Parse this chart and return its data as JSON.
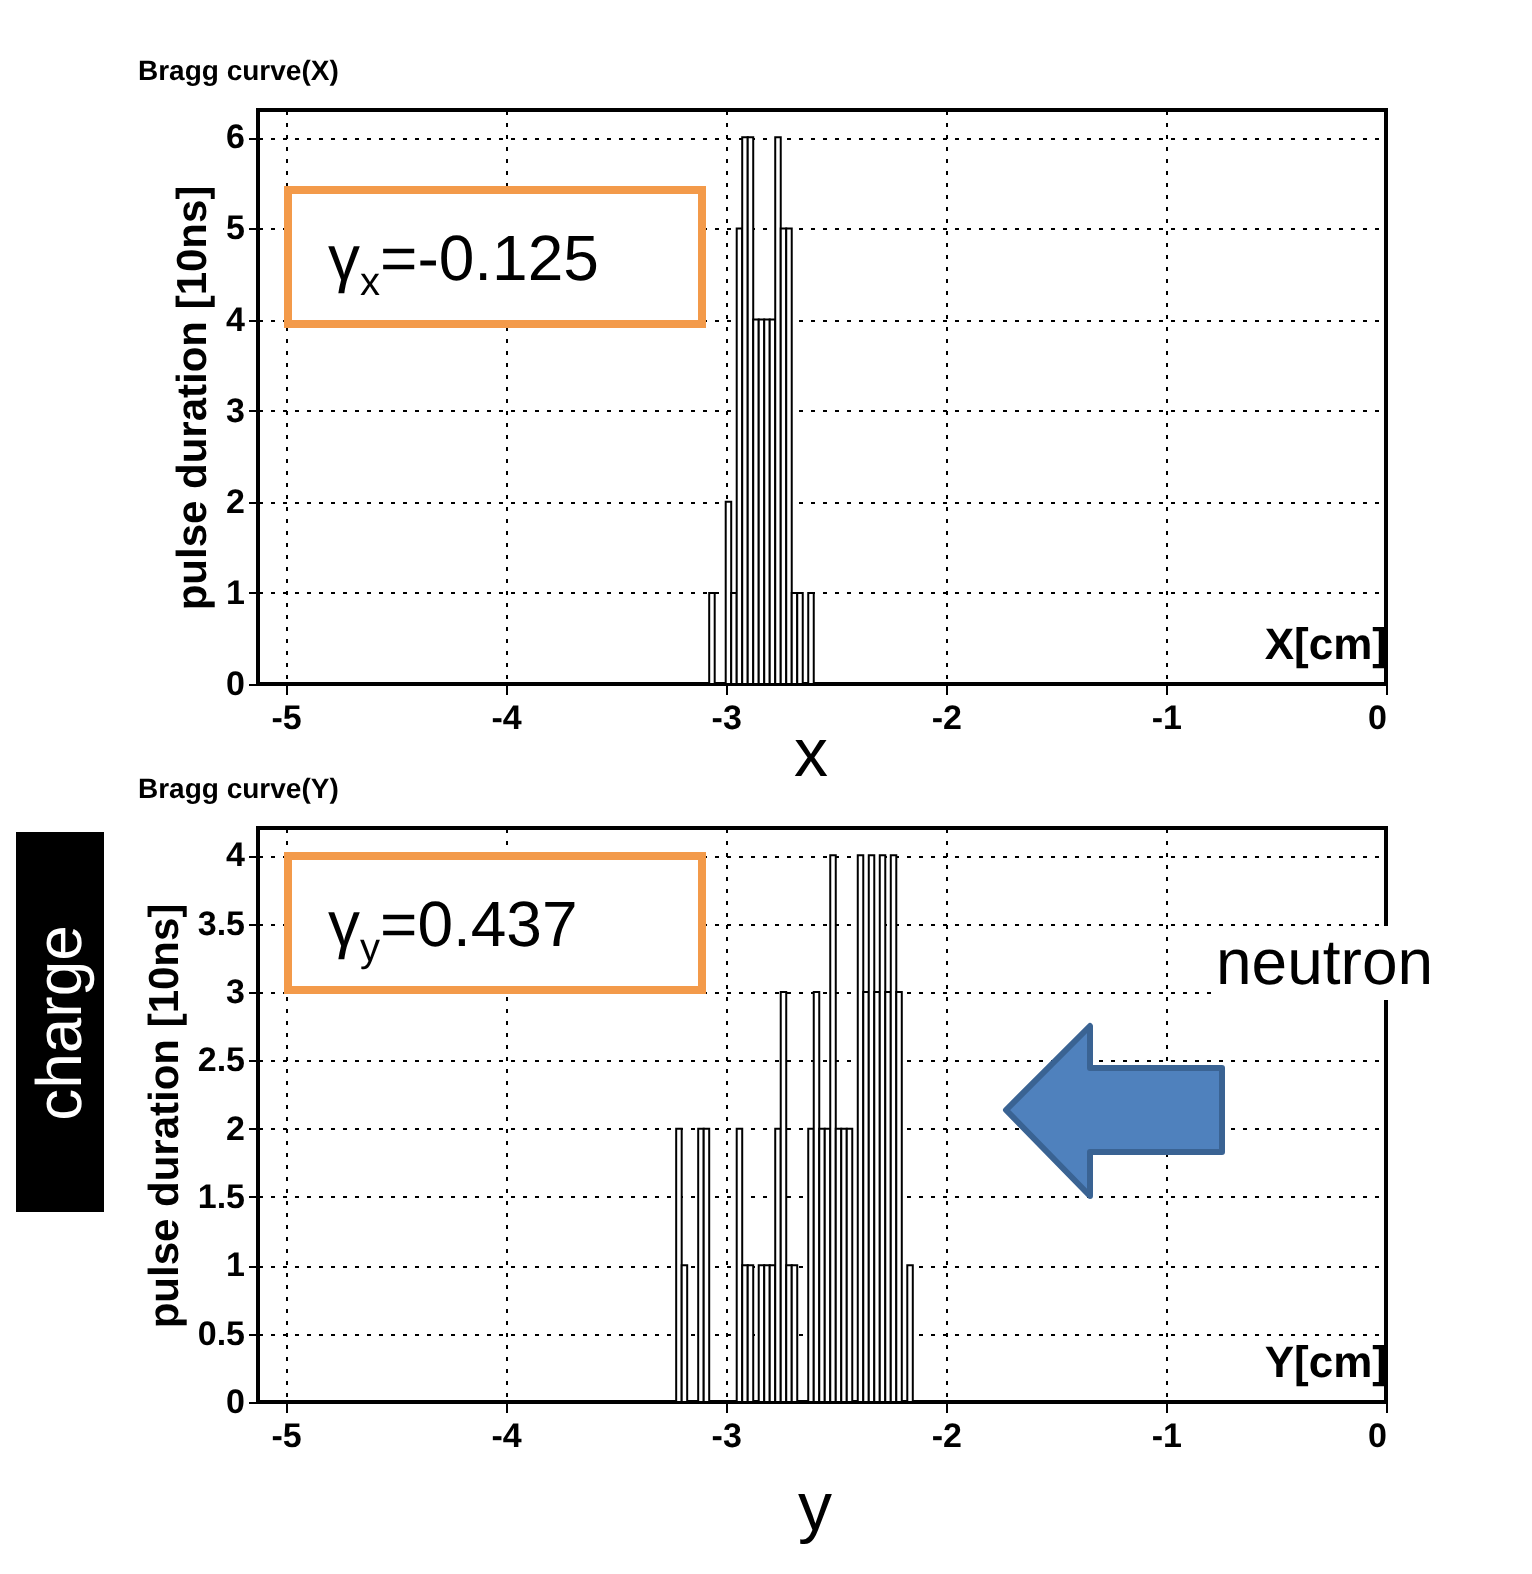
{
  "chart_data": [
    {
      "type": "histogram",
      "title": "Bragg curve(X)",
      "ylabel": "pulse duration [10ns]",
      "xlabel": "X[cm]",
      "color": "#000000",
      "bins": [
        -3.075,
        -3.05,
        -3.025,
        -3.0,
        -2.975,
        -2.95,
        -2.925,
        -2.9,
        -2.875,
        -2.85,
        -2.825,
        -2.8,
        -2.775,
        -2.75,
        -2.725,
        -2.7,
        -2.675,
        -2.65,
        -2.625,
        -2.6,
        -2.575
      ],
      "values": [
        1,
        0,
        0,
        2,
        1,
        5,
        6,
        6,
        4,
        4,
        4,
        4,
        6,
        5,
        5,
        1,
        1,
        0,
        1,
        0
      ],
      "xlim": [
        -5.125,
        0
      ],
      "xticks": [
        -5,
        -4,
        -3,
        -2,
        -1,
        0
      ],
      "ylim": [
        0,
        6.3
      ],
      "yticks": [
        0,
        1,
        2,
        3,
        4,
        5,
        6
      ],
      "grid": true,
      "annotations": [
        "γ$_{x}$=-0.125",
        "x"
      ]
    },
    {
      "type": "histogram",
      "title": "Bragg curve(Y)",
      "ylabel": "pulse duration [10ns]",
      "xlabel": "Y[cm]",
      "color": "#000000",
      "bins": [
        -3.225,
        -3.2,
        -3.175,
        -3.15,
        -3.125,
        -3.1,
        -3.075,
        -3.05,
        -3.025,
        -3.0,
        -2.975,
        -2.95,
        -2.925,
        -2.9,
        -2.875,
        -2.85,
        -2.825,
        -2.8,
        -2.775,
        -2.75,
        -2.725,
        -2.7,
        -2.675,
        -2.65,
        -2.625,
        -2.6,
        -2.575,
        -2.55,
        -2.525,
        -2.5,
        -2.475,
        -2.45,
        -2.425,
        -2.4,
        -2.375,
        -2.35,
        -2.325,
        -2.3,
        -2.275,
        -2.25,
        -2.225,
        -2.2,
        -2.175,
        -2.15
      ],
      "values": [
        2,
        1,
        0,
        0,
        2,
        2,
        0,
        0,
        0,
        0,
        0,
        2,
        1,
        1,
        0,
        1,
        1,
        1,
        2,
        3,
        1,
        1,
        0,
        0,
        2,
        3,
        2,
        2,
        4,
        2,
        2,
        2,
        0,
        4,
        3,
        4,
        3,
        4,
        3,
        4,
        3,
        0,
        1
      ],
      "xlim": [
        -5.125,
        0
      ],
      "xticks": [
        -5,
        -4,
        -3,
        -2,
        -1,
        0
      ],
      "ylim": [
        0,
        4.2
      ],
      "yticks": [
        0,
        0.5,
        1,
        1.5,
        2,
        2.5,
        3,
        3.5,
        4
      ],
      "grid": true,
      "annotations": [
        "γ$_{y}$=0.437",
        "y",
        "neutron",
        "charge"
      ]
    }
  ]
}
